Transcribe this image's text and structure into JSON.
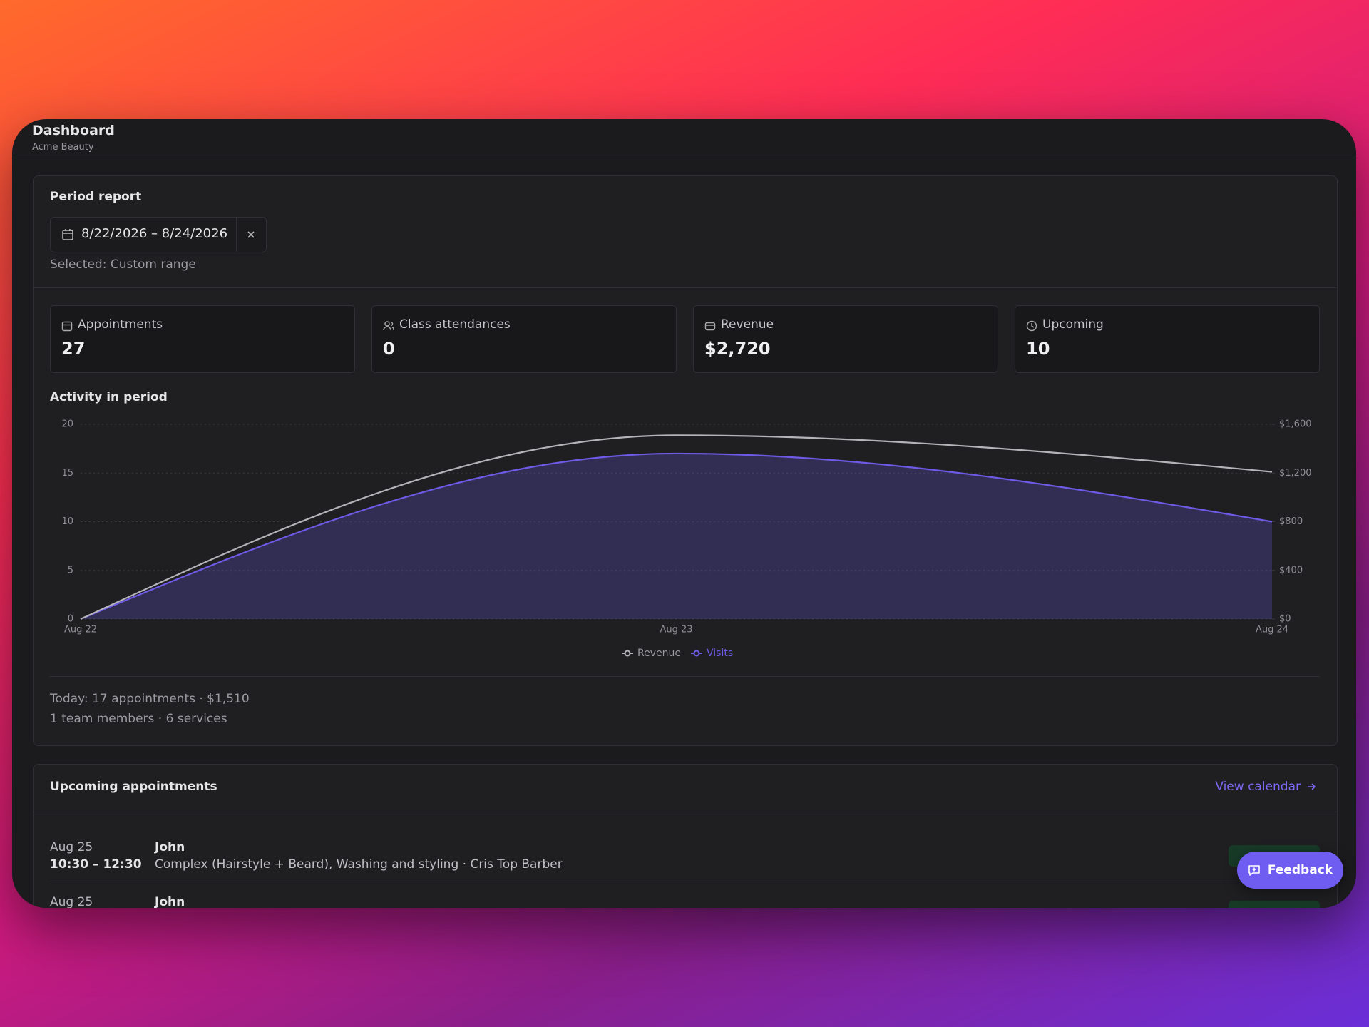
{
  "header": {
    "title": "Dashboard",
    "subtitle": "Acme Beauty"
  },
  "period": {
    "title": "Period report",
    "range": "8/22/2026 – 8/24/2026",
    "selected": "Selected: Custom range"
  },
  "stats": [
    {
      "label": "Appointments",
      "value": "27"
    },
    {
      "label": "Class attendances",
      "value": "0"
    },
    {
      "label": "Revenue",
      "value": "$2,720"
    },
    {
      "label": "Upcoming",
      "value": "10"
    }
  ],
  "chart_data": {
    "type": "line",
    "title": "Activity in period",
    "categories": [
      "Aug 22",
      "Aug 23",
      "Aug 24"
    ],
    "series": [
      {
        "name": "Revenue",
        "color": "#b4b4b8",
        "axis": "y2",
        "values": [
          0,
          1510,
          1210
        ]
      },
      {
        "name": "Visits",
        "color": "#6d5ae6",
        "area": true,
        "values": [
          0,
          17,
          10
        ]
      }
    ],
    "ylim": [
      0,
      20
    ],
    "yticks": [
      0,
      5,
      10,
      15,
      20
    ],
    "y2lim": [
      0,
      1600
    ],
    "y2ticks": [
      {
        "value": 0,
        "label": "$0"
      },
      {
        "value": 400,
        "label": "$400"
      },
      {
        "value": 800,
        "label": "$800"
      },
      {
        "value": 1200,
        "label": "$1,200"
      },
      {
        "value": 1600,
        "label": "$1,600"
      }
    ],
    "grid": true,
    "legend": "bottom"
  },
  "summary": [
    "Today: 17 appointments · $1,510",
    "1 team members · 6 services"
  ],
  "upcoming": {
    "title": "Upcoming appointments",
    "link": "View calendar",
    "items": [
      {
        "date": "Aug 25",
        "time": "10:30 – 12:30",
        "client": "John",
        "details": "Complex (Hairstyle + Beard), Washing and styling · Cris Top Barber"
      },
      {
        "date": "Aug 25",
        "client": "John"
      }
    ]
  },
  "feedback": "Feedback"
}
